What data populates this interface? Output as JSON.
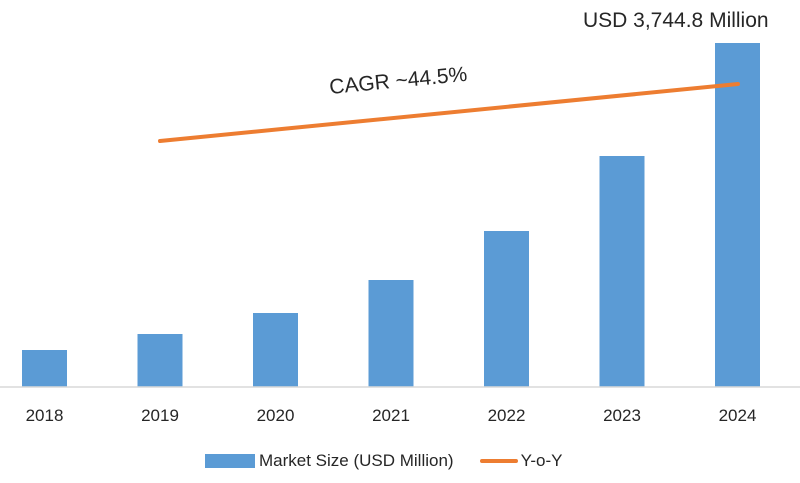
{
  "chart_data": {
    "type": "bar",
    "title": "",
    "xlabel": "",
    "ylabel": "",
    "categories": [
      "2018",
      "2019",
      "2020",
      "2021",
      "2022",
      "2023",
      "2024"
    ],
    "series": [
      {
        "name": "Market Size (USD Million)",
        "type": "bar",
        "color": "#5b9bd5",
        "values": [
          403,
          577,
          806,
          1165,
          1698,
          2515,
          3744.8
        ]
      },
      {
        "name": "Y-o-Y",
        "type": "line",
        "color": "#ed7d31",
        "description": "straight upward-sloping trend line from 2019 to 2024 (no values shown)"
      }
    ],
    "annotations": [
      {
        "text": "USD 3,744.8 Million",
        "target": "2024"
      },
      {
        "text": "CAGR ~44.5%",
        "target": "Y-o-Y line"
      }
    ],
    "ylim": [
      0,
      3744.8
    ],
    "grid": false,
    "y_axis_visible": false,
    "legend_position": "bottom"
  },
  "labels": {
    "top_value": "USD 3,744.8 Million",
    "cagr": "CAGR ~44.5%"
  },
  "legend": {
    "bar_label": "Market Size (USD Million)",
    "line_label": "Y-o-Y"
  },
  "colors": {
    "bar": "#5b9bd5",
    "line": "#ed7d31",
    "axis": "#d9d9d9",
    "text": "#262626"
  }
}
